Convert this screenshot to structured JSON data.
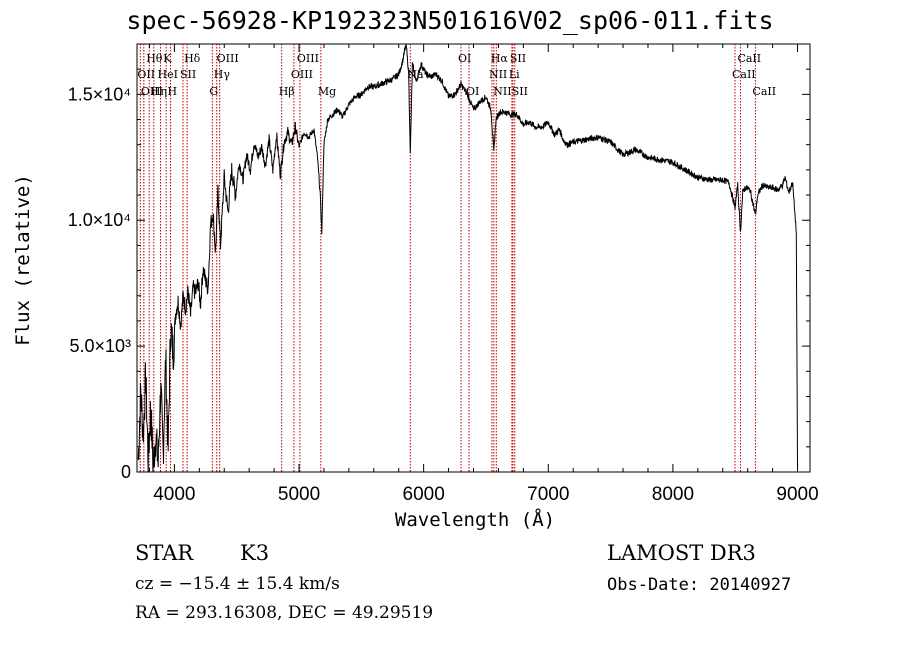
{
  "chart_data": {
    "type": "line",
    "title": "spec-56928-KP192323N501616V02_sp06-011.fits",
    "xlabel": "Wavelength (Å)",
    "ylabel": "Flux (relative)",
    "xlim": [
      3700,
      9100
    ],
    "ylim": [
      0,
      17000
    ],
    "xticks": [
      {
        "value": 4000,
        "label": "4000"
      },
      {
        "value": 5000,
        "label": "5000"
      },
      {
        "value": 6000,
        "label": "6000"
      },
      {
        "value": 7000,
        "label": "7000"
      },
      {
        "value": 8000,
        "label": "8000"
      },
      {
        "value": 9000,
        "label": "9000"
      }
    ],
    "yticks": [
      {
        "value": 0,
        "label": "0"
      },
      {
        "value": 5000,
        "label": "5.0×10³"
      },
      {
        "value": 10000,
        "label": "1.0×10⁴"
      },
      {
        "value": 15000,
        "label": "1.5×10⁴"
      }
    ],
    "spectrum": {
      "x": [
        3710,
        3730,
        3750,
        3770,
        3790,
        3810,
        3830,
        3850,
        3870,
        3890,
        3910,
        3930,
        3950,
        3970,
        3990,
        4010,
        4030,
        4050,
        4070,
        4090,
        4110,
        4130,
        4150,
        4170,
        4190,
        4210,
        4230,
        4250,
        4270,
        4290,
        4310,
        4330,
        4350,
        4370,
        4400,
        4430,
        4460,
        4490,
        4520,
        4550,
        4580,
        4610,
        4640,
        4670,
        4700,
        4730,
        4760,
        4790,
        4820,
        4850,
        4861,
        4880,
        4910,
        4940,
        4970,
        5000,
        5040,
        5080,
        5120,
        5150,
        5170,
        5183,
        5200,
        5230,
        5270,
        5310,
        5350,
        5400,
        5450,
        5500,
        5550,
        5600,
        5650,
        5700,
        5750,
        5800,
        5830,
        5860,
        5880,
        5893,
        5910,
        5940,
        5980,
        6020,
        6060,
        6100,
        6150,
        6200,
        6250,
        6300,
        6350,
        6400,
        6450,
        6500,
        6540,
        6563,
        6580,
        6610,
        6650,
        6700,
        6750,
        6800,
        6850,
        6900,
        6950,
        7000,
        7050,
        7090,
        7120,
        7150,
        7200,
        7300,
        7400,
        7500,
        7600,
        7700,
        7800,
        7900,
        8000,
        8100,
        8200,
        8300,
        8400,
        8450,
        8498,
        8520,
        8542,
        8560,
        8580,
        8620,
        8662,
        8680,
        8720,
        8760,
        8800,
        8840,
        8880,
        8900,
        8930,
        8960,
        8980,
        8990,
        9000
      ],
      "y": [
        500,
        3200,
        1500,
        3800,
        400,
        2600,
        200,
        1500,
        300,
        3400,
        700,
        4500,
        900,
        5800,
        4700,
        6300,
        6800,
        5800,
        7000,
        6500,
        7200,
        6200,
        7300,
        7100,
        7500,
        6700,
        8100,
        7600,
        7300,
        9800,
        10300,
        8700,
        11200,
        9000,
        11700,
        10300,
        12000,
        11000,
        12300,
        11600,
        12600,
        12000,
        13100,
        12500,
        12900,
        12200,
        13200,
        12000,
        13400,
        11800,
        12300,
        13100,
        13500,
        13000,
        13700,
        12900,
        13500,
        13300,
        13600,
        12400,
        11000,
        9500,
        13000,
        14000,
        14200,
        14400,
        14100,
        14600,
        14900,
        15000,
        15300,
        15300,
        15400,
        15500,
        15600,
        15800,
        16300,
        17000,
        15800,
        12600,
        16200,
        15500,
        16200,
        15800,
        15700,
        15800,
        15500,
        14900,
        15000,
        15400,
        15000,
        14400,
        14700,
        14900,
        14400,
        12700,
        14000,
        14300,
        14300,
        14200,
        14200,
        13800,
        13900,
        13700,
        13700,
        13900,
        13400,
        13600,
        13200,
        13000,
        13100,
        13200,
        13300,
        13100,
        12600,
        12800,
        12500,
        12400,
        12300,
        12000,
        11700,
        11600,
        11600,
        11500,
        10500,
        11400,
        9500,
        11100,
        11300,
        11200,
        10200,
        11000,
        11400,
        11300,
        11300,
        11200,
        11400,
        11700,
        11100,
        11500,
        10200,
        9500,
        200
      ]
    },
    "lines": [
      {
        "name": "Hθ",
        "wave": 3798,
        "row": 1
      },
      {
        "name": "OII",
        "wave": 3727,
        "row": 2
      },
      {
        "name": "OIII",
        "wave": 3755,
        "row": 3
      },
      {
        "name": "K",
        "wave": 3934,
        "row": 1
      },
      {
        "name": "HeI",
        "wave": 3889,
        "row": 2
      },
      {
        "name": "Hη",
        "wave": 3835,
        "row": 3
      },
      {
        "name": "H",
        "wave": 3969,
        "row": 3
      },
      {
        "name": "SII",
        "wave": 4069,
        "row": 2
      },
      {
        "name": "Hδ",
        "wave": 4102,
        "row": 1
      },
      {
        "name": "OIII",
        "wave": 4363,
        "row": 1
      },
      {
        "name": "Hγ",
        "wave": 4340,
        "row": 2
      },
      {
        "name": "G",
        "wave": 4305,
        "row": 3
      },
      {
        "name": "Hβ",
        "wave": 4861,
        "row": 3
      },
      {
        "name": "OIII",
        "wave": 5007,
        "row": 1
      },
      {
        "name": "OIII",
        "wave": 4959,
        "row": 2
      },
      {
        "name": "Mg",
        "wave": 5175,
        "row": 3
      },
      {
        "name": "Na",
        "wave": 5893,
        "row": 2
      },
      {
        "name": "OI",
        "wave": 6300,
        "row": 1
      },
      {
        "name": "OI",
        "wave": 6364,
        "row": 3
      },
      {
        "name": "Hα",
        "wave": 6563,
        "row": 1
      },
      {
        "name": "SII",
        "wave": 6716,
        "row": 1
      },
      {
        "name": "NII",
        "wave": 6548,
        "row": 2
      },
      {
        "name": "Li",
        "wave": 6708,
        "row": 2
      },
      {
        "name": "NII",
        "wave": 6583,
        "row": 3
      },
      {
        "name": "SII",
        "wave": 6731,
        "row": 3
      },
      {
        "name": "CaII",
        "wave": 8542,
        "row": 1
      },
      {
        "name": "CaII",
        "wave": 8498,
        "row": 2
      },
      {
        "name": "CaII",
        "wave": 8662,
        "row": 3
      }
    ]
  },
  "info": {
    "object_class": "STAR",
    "subclass": "K3",
    "survey": "LAMOST DR3",
    "redshift_text": "cz = −15.4 ± 15.4 km/s",
    "obs_date": "Obs-Date: 20140927",
    "coords": "RA = 293.16308, DEC =  49.29519"
  },
  "colors": {
    "axis": "#000000",
    "spectrum": "#000000",
    "line_marker": "#c00000"
  }
}
